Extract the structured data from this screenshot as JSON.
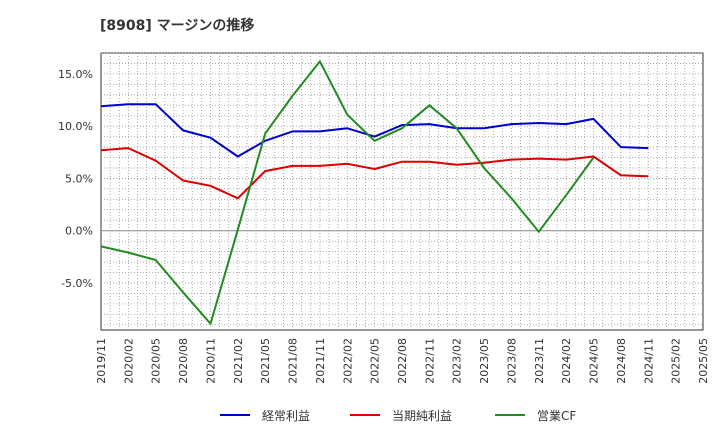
{
  "chart_data": {
    "type": "line",
    "title": "[8908]  マージンの推移",
    "x": [
      "2019/11",
      "2020/02",
      "2020/05",
      "2020/08",
      "2020/11",
      "2021/02",
      "2021/05",
      "2021/08",
      "2021/11",
      "2022/02",
      "2022/05",
      "2022/08",
      "2022/11",
      "2023/02",
      "2023/05",
      "2023/08",
      "2023/11",
      "2024/02",
      "2024/05",
      "2024/08",
      "2024/11",
      "2025/02",
      "2025/05"
    ],
    "y_ticks": [
      "15.0%",
      "10.0%",
      "5.0%",
      "0.0%",
      "-5.0%"
    ],
    "ylim": [
      -9.5,
      17.0
    ],
    "grid": true,
    "legend_position": "bottom",
    "series": [
      {
        "name": "経常利益",
        "color": "#0000cc",
        "values": [
          11.9,
          12.1,
          12.1,
          9.6,
          8.9,
          7.1,
          8.6,
          9.5,
          9.5,
          9.8,
          9.0,
          10.1,
          10.2,
          9.8,
          9.8,
          10.2,
          10.3,
          10.2,
          10.7,
          8.0,
          7.9,
          null,
          null
        ]
      },
      {
        "name": "当期純利益",
        "color": "#dd0000",
        "values": [
          7.7,
          7.9,
          6.7,
          4.8,
          4.3,
          3.1,
          5.7,
          6.2,
          6.2,
          6.4,
          5.9,
          6.6,
          6.6,
          6.3,
          6.5,
          6.8,
          6.9,
          6.8,
          7.1,
          5.3,
          5.2,
          null,
          null
        ]
      },
      {
        "name": "営業CF",
        "color": "#228b22",
        "values": [
          -1.5,
          -2.1,
          -2.8,
          -5.9,
          -8.9,
          0.1,
          9.3,
          12.9,
          16.2,
          11.1,
          8.6,
          9.8,
          12.0,
          9.8,
          6.0,
          3.1,
          -0.1,
          3.4,
          7.0,
          null,
          null,
          null,
          null
        ]
      }
    ]
  }
}
